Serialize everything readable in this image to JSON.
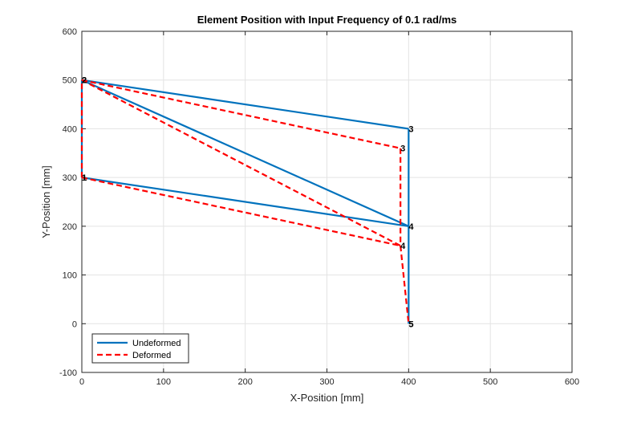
{
  "chart_data": {
    "type": "line",
    "title": "Element Position with Input Frequency of 0.1 rad/ms",
    "xlabel": "X-Position [mm]",
    "ylabel": "Y-Position [mm]",
    "xlim": [
      0,
      600
    ],
    "ylim": [
      -100,
      600
    ],
    "xticks": [
      0,
      100,
      200,
      300,
      400,
      500,
      600
    ],
    "yticks": [
      -100,
      0,
      100,
      200,
      300,
      400,
      500,
      600
    ],
    "grid": true,
    "legend_position": "bottom-left",
    "series": [
      {
        "name": "Undeformed",
        "color": "#0072BD",
        "style": "solid",
        "segments": [
          [
            [
              0,
              300
            ],
            [
              0,
              500
            ]
          ],
          [
            [
              0,
              500
            ],
            [
              400,
              400
            ]
          ],
          [
            [
              0,
              500
            ],
            [
              400,
              200
            ]
          ],
          [
            [
              0,
              300
            ],
            [
              400,
              200
            ]
          ],
          [
            [
              400,
              400
            ],
            [
              400,
              200
            ]
          ],
          [
            [
              400,
              200
            ],
            [
              400,
              0
            ]
          ]
        ]
      },
      {
        "name": "Deformed",
        "color": "#FF0000",
        "style": "dashed",
        "segments": [
          [
            [
              0,
              300
            ],
            [
              0,
              500
            ]
          ],
          [
            [
              0,
              500
            ],
            [
              390,
              360
            ]
          ],
          [
            [
              0,
              500
            ],
            [
              390,
              160
            ]
          ],
          [
            [
              0,
              300
            ],
            [
              390,
              160
            ]
          ],
          [
            [
              390,
              360
            ],
            [
              390,
              160
            ]
          ],
          [
            [
              390,
              160
            ],
            [
              400,
              0
            ]
          ]
        ]
      }
    ],
    "node_labels": [
      {
        "text": "1",
        "x": 0,
        "y": 300
      },
      {
        "text": "1",
        "x": 0,
        "y": 300
      },
      {
        "text": "2",
        "x": 0,
        "y": 500
      },
      {
        "text": "2",
        "x": 0,
        "y": 500
      },
      {
        "text": "3",
        "x": 400,
        "y": 400
      },
      {
        "text": "3",
        "x": 390,
        "y": 360
      },
      {
        "text": "4",
        "x": 400,
        "y": 200
      },
      {
        "text": "4",
        "x": 390,
        "y": 160
      },
      {
        "text": "5",
        "x": 400,
        "y": 0
      },
      {
        "text": "5",
        "x": 400,
        "y": 0
      }
    ]
  }
}
